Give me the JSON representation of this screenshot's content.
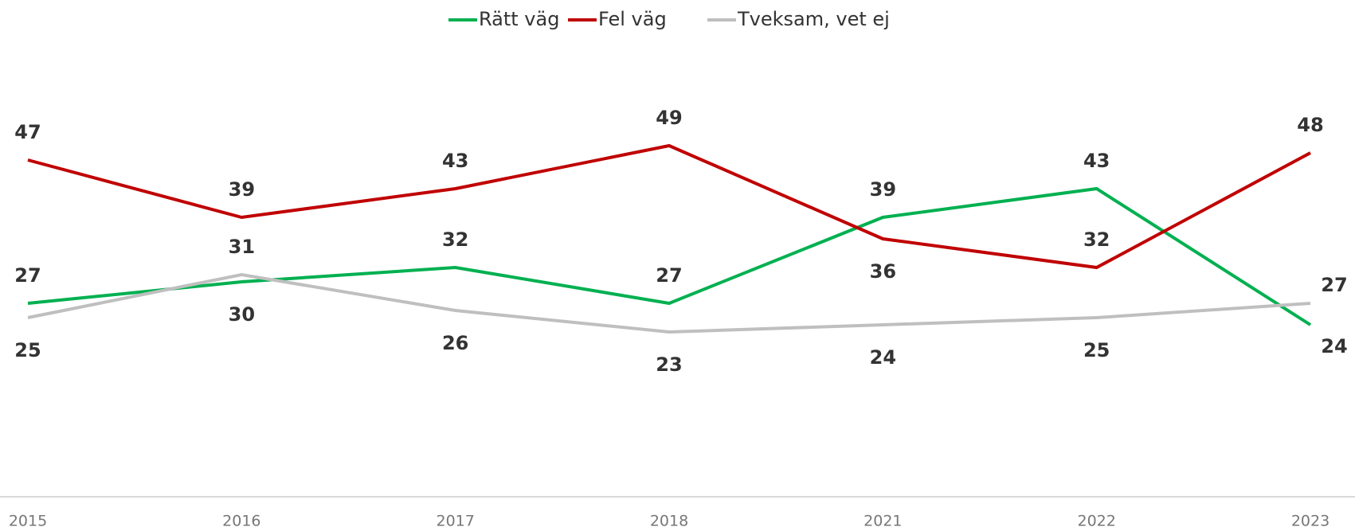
{
  "chart_data": {
    "type": "line",
    "categories": [
      "2015",
      "2016",
      "2017",
      "2018",
      "2021",
      "2022",
      "2023"
    ],
    "series": [
      {
        "name": "Rätt väg",
        "color": "#00b050",
        "values": [
          27,
          30,
          32,
          27,
          39,
          43,
          24
        ]
      },
      {
        "name": "Fel väg",
        "color": "#c00000",
        "values": [
          47,
          39,
          43,
          49,
          36,
          32,
          48
        ]
      },
      {
        "name": "Tveksam, vet ej",
        "color": "#bfbfbf",
        "values": [
          25,
          31,
          26,
          23,
          24,
          25,
          27
        ]
      }
    ],
    "ylim": [
      0,
      60
    ],
    "legend": "top"
  }
}
